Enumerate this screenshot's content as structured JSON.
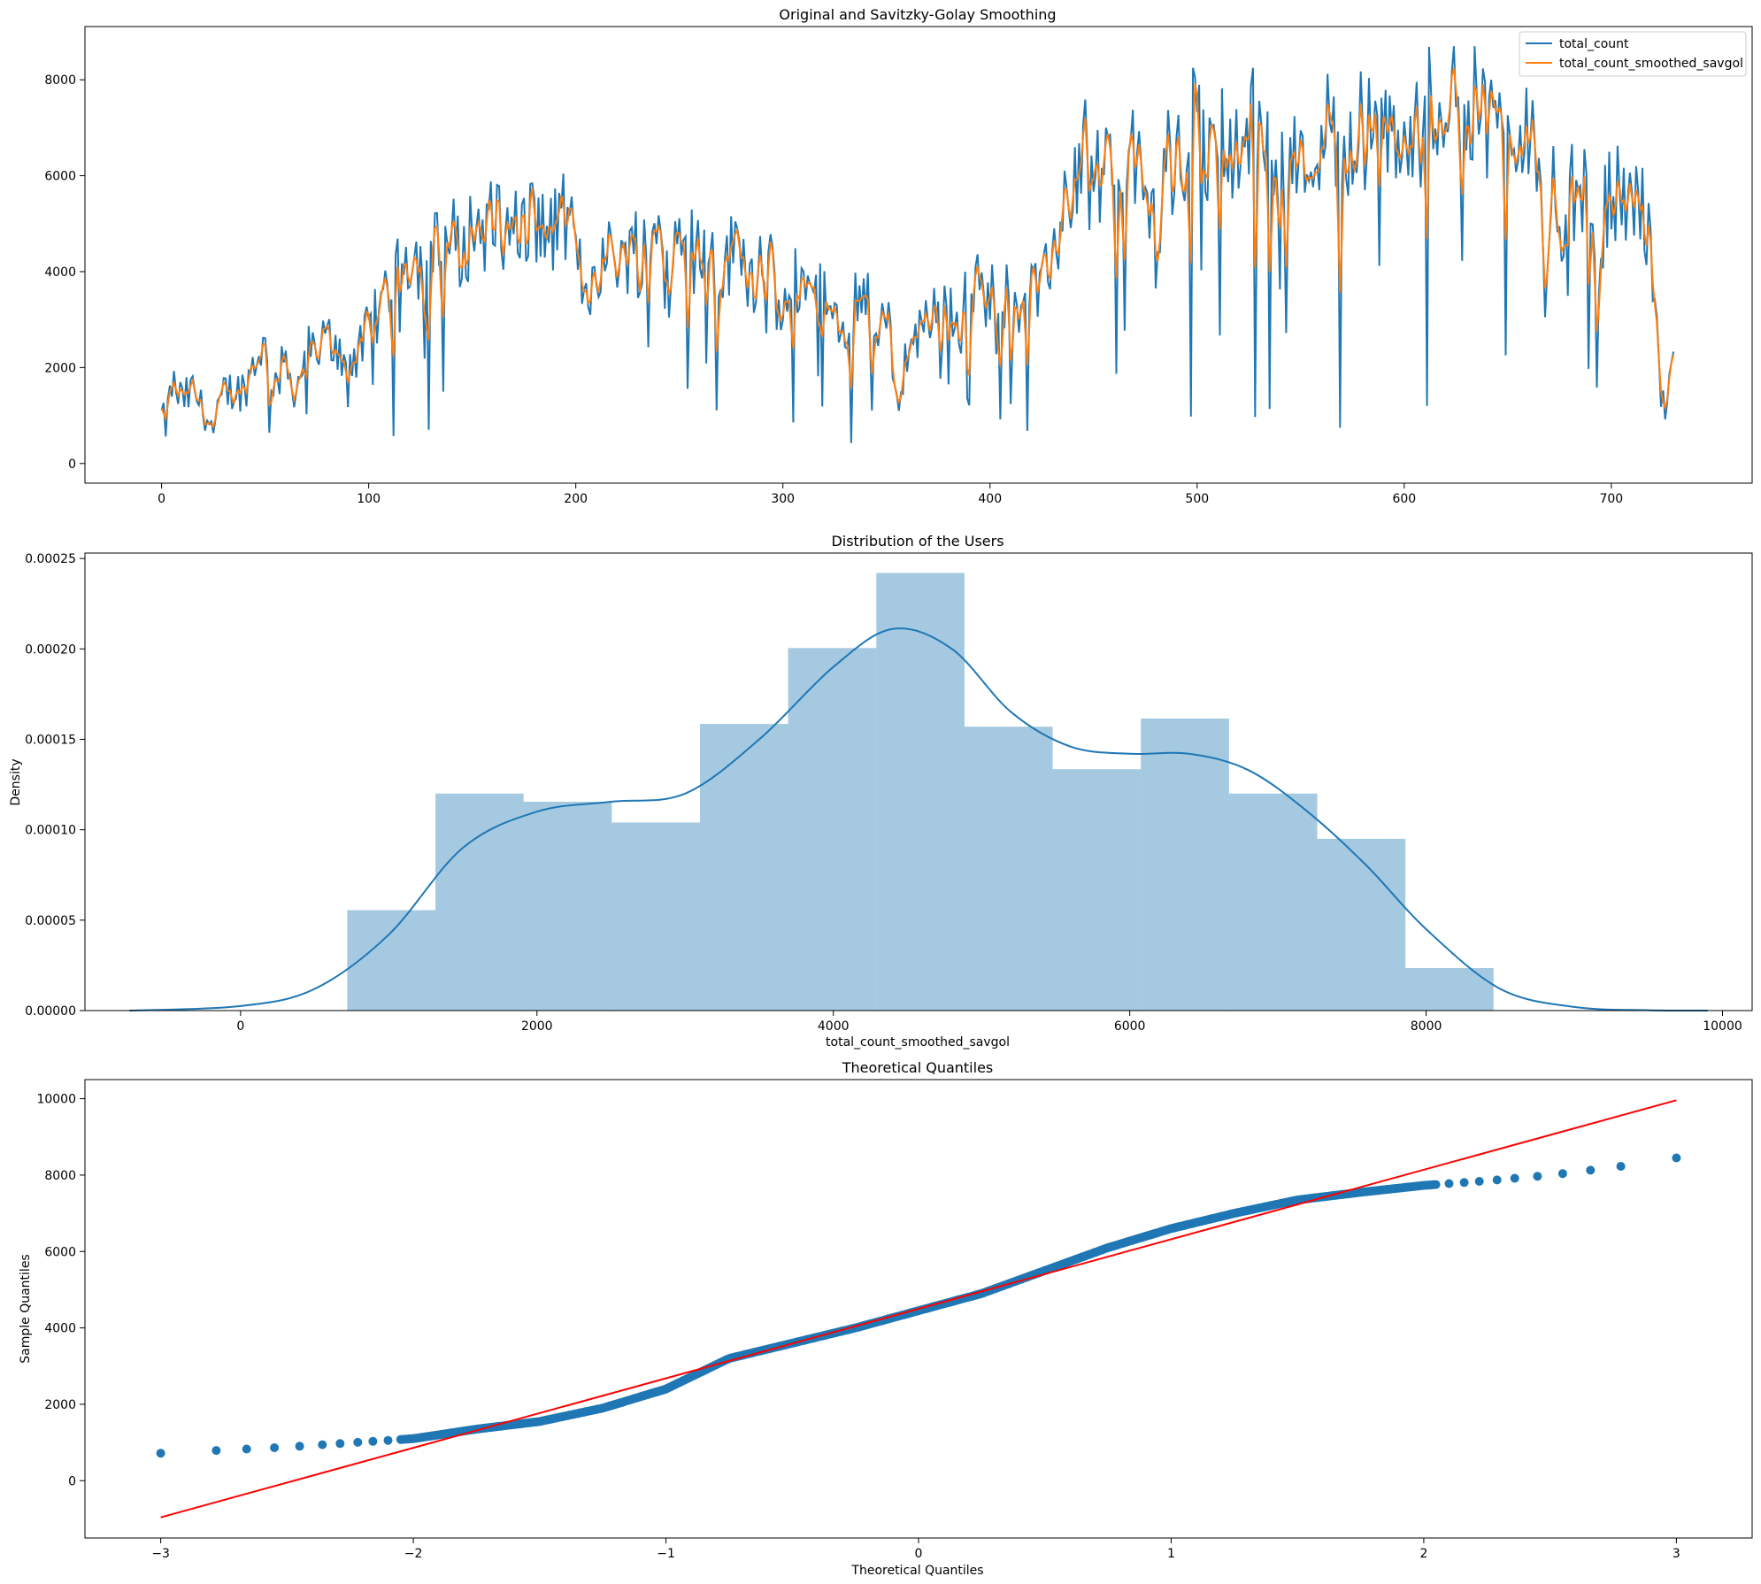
{
  "chart_data": [
    {
      "type": "line",
      "title": "Original and Savitzky-Golay Smoothing",
      "xlabel": "",
      "ylabel": "",
      "xlim": [
        -37,
        768
      ],
      "ylim": [
        -410,
        9110
      ],
      "xticks": [
        0,
        100,
        200,
        300,
        400,
        500,
        600,
        700
      ],
      "yticks": [
        0,
        2000,
        4000,
        6000,
        8000
      ],
      "grid": false,
      "legend": "top-right",
      "colors": [
        "#1f77b4",
        "#ff7f0e"
      ],
      "x_range": [
        0,
        730
      ],
      "series": [
        {
          "name": "total_count",
          "anchors": [
            [
              0,
              985
            ],
            [
              2,
              800
            ],
            [
              5,
              1650
            ],
            [
              10,
              1300
            ],
            [
              15,
              1500
            ],
            [
              20,
              1200
            ],
            [
              25,
              600
            ],
            [
              30,
              1500
            ],
            [
              40,
              1550
            ],
            [
              48,
              2500
            ],
            [
              55,
              1700
            ],
            [
              60,
              2100
            ],
            [
              65,
              1500
            ],
            [
              70,
              2400
            ],
            [
              75,
              2200
            ],
            [
              80,
              2600
            ],
            [
              85,
              2300
            ],
            [
              90,
              2300
            ],
            [
              95,
              2200
            ],
            [
              100,
              2800
            ],
            [
              105,
              3100
            ],
            [
              110,
              3900
            ],
            [
              115,
              4300
            ],
            [
              120,
              4400
            ],
            [
              125,
              4200
            ],
            [
              130,
              4600
            ],
            [
              135,
              4300
            ],
            [
              140,
              4800
            ],
            [
              145,
              4200
            ],
            [
              150,
              5000
            ],
            [
              160,
              4800
            ],
            [
              170,
              4600
            ],
            [
              180,
              5200
            ],
            [
              185,
              4800
            ],
            [
              190,
              4700
            ],
            [
              195,
              5200
            ],
            [
              200,
              4400
            ],
            [
              205,
              3500
            ],
            [
              210,
              4200
            ],
            [
              220,
              4400
            ],
            [
              230,
              4300
            ],
            [
              235,
              4600
            ],
            [
              240,
              5000
            ],
            [
              245,
              3300
            ],
            [
              250,
              4700
            ],
            [
              255,
              4300
            ],
            [
              260,
              4500
            ],
            [
              270,
              3800
            ],
            [
              275,
              4400
            ],
            [
              280,
              4800
            ],
            [
              285,
              3500
            ],
            [
              290,
              4700
            ],
            [
              295,
              3800
            ],
            [
              300,
              2900
            ],
            [
              305,
              3700
            ],
            [
              310,
              4000
            ],
            [
              315,
              3300
            ],
            [
              320,
              3500
            ],
            [
              325,
              2800
            ],
            [
              330,
              2500
            ],
            [
              335,
              3500
            ],
            [
              340,
              3700
            ],
            [
              345,
              2600
            ],
            [
              350,
              3200
            ],
            [
              355,
              1200
            ],
            [
              360,
              2400
            ],
            [
              365,
              2600
            ],
            [
              370,
              3300
            ],
            [
              375,
              2800
            ],
            [
              380,
              3200
            ],
            [
              385,
              2500
            ],
            [
              390,
              4000
            ],
            [
              395,
              3600
            ],
            [
              400,
              3500
            ],
            [
              405,
              3700
            ],
            [
              410,
              3200
            ],
            [
              415,
              3500
            ],
            [
              420,
              3700
            ],
            [
              425,
              3400
            ],
            [
              430,
              4500
            ],
            [
              435,
              5000
            ],
            [
              440,
              6000
            ],
            [
              445,
              6400
            ],
            [
              450,
              5500
            ],
            [
              455,
              6000
            ],
            [
              460,
              6500
            ],
            [
              465,
              5800
            ],
            [
              470,
              6400
            ],
            [
              475,
              5500
            ],
            [
              480,
              4500
            ],
            [
              485,
              6000
            ],
            [
              490,
              6200
            ],
            [
              495,
              6400
            ],
            [
              500,
              7500
            ],
            [
              505,
              6300
            ],
            [
              510,
              6600
            ],
            [
              515,
              7000
            ],
            [
              520,
              6200
            ],
            [
              525,
              7000
            ],
            [
              530,
              7300
            ],
            [
              535,
              6500
            ],
            [
              540,
              6300
            ],
            [
              545,
              6800
            ],
            [
              550,
              6000
            ],
            [
              555,
              6500
            ],
            [
              560,
              6900
            ],
            [
              565,
              6500
            ],
            [
              570,
              7000
            ],
            [
              575,
              6300
            ],
            [
              580,
              6800
            ],
            [
              585,
              7100
            ],
            [
              590,
              6700
            ],
            [
              595,
              6900
            ],
            [
              600,
              6800
            ],
            [
              605,
              6400
            ],
            [
              610,
              7000
            ],
            [
              615,
              7300
            ],
            [
              620,
              7800
            ],
            [
              625,
              8000
            ],
            [
              630,
              7500
            ],
            [
              635,
              7300
            ],
            [
              640,
              7200
            ],
            [
              645,
              6800
            ],
            [
              650,
              7500
            ],
            [
              655,
              6900
            ],
            [
              660,
              7200
            ],
            [
              665,
              6500
            ],
            [
              668,
              2500
            ],
            [
              672,
              5600
            ],
            [
              676,
              5000
            ],
            [
              680,
              5800
            ],
            [
              685,
              5500
            ],
            [
              690,
              5600
            ],
            [
              693,
              3000
            ],
            [
              697,
              5100
            ],
            [
              700,
              5800
            ],
            [
              705,
              5500
            ],
            [
              710,
              5300
            ],
            [
              715,
              5500
            ],
            [
              720,
              4200
            ],
            [
              723,
              1700
            ],
            [
              726,
              900
            ],
            [
              728,
              2000
            ],
            [
              730,
              2600
            ]
          ]
        },
        {
          "name": "total_count_smoothed_savgol"
        }
      ]
    },
    {
      "type": "bar",
      "title": "Distribution of the Users",
      "xlabel": "total_count_smoothed_savgol",
      "ylabel": "Density",
      "xlim": [
        -1050,
        10200
      ],
      "ylim": [
        0,
        0.000253
      ],
      "xticks": [
        0,
        2000,
        4000,
        6000,
        8000,
        10000
      ],
      "yticks": [
        "0.00000",
        "0.00005",
        "0.00010",
        "0.00015",
        "0.00020",
        "0.00025"
      ],
      "legend": "none",
      "colors": [
        "#1f77b4"
      ],
      "bins": [
        {
          "x0": 720,
          "x1": 1315,
          "density": 5.55e-05
        },
        {
          "x0": 1315,
          "x1": 1910,
          "density": 0.00012
        },
        {
          "x0": 1910,
          "x1": 2505,
          "density": 0.0001155
        },
        {
          "x0": 2505,
          "x1": 3100,
          "density": 0.000104
        },
        {
          "x0": 3100,
          "x1": 3695,
          "density": 0.0001585
        },
        {
          "x0": 3695,
          "x1": 4290,
          "density": 0.0002005
        },
        {
          "x0": 4290,
          "x1": 4885,
          "density": 0.000242
        },
        {
          "x0": 4885,
          "x1": 5480,
          "density": 0.000157
        },
        {
          "x0": 5480,
          "x1": 6075,
          "density": 0.0001335
        },
        {
          "x0": 6075,
          "x1": 6670,
          "density": 0.0001615
        },
        {
          "x0": 6670,
          "x1": 7265,
          "density": 0.00012
        },
        {
          "x0": 7265,
          "x1": 7860,
          "density": 9.5e-05
        },
        {
          "x0": 7860,
          "x1": 8455,
          "density": 2.35e-05
        }
      ],
      "kde": {
        "x": [
          -750,
          0,
          500,
          1000,
          1500,
          2000,
          2500,
          3000,
          3500,
          4000,
          4400,
          4800,
          5200,
          5600,
          6000,
          6400,
          6800,
          7200,
          7600,
          8000,
          8500,
          9000,
          9500,
          9900
        ],
        "density": [
          0.0,
          2.5e-06,
          1.2e-05,
          4.2e-05,
          9e-05,
          0.00011,
          0.0001155,
          0.00012,
          0.00015,
          0.00019,
          0.000211,
          0.0002,
          0.000165,
          0.000146,
          0.000142,
          0.000142,
          0.000133,
          0.00011,
          8e-05,
          4.5e-05,
          1.2e-05,
          2e-06,
          2e-07,
          0.0
        ]
      }
    },
    {
      "type": "scatter",
      "title": "Theoretical Quantiles",
      "xlabel": "Theoretical Quantiles",
      "ylabel": "Sample Quantiles",
      "xlim": [
        -3.3,
        3.3
      ],
      "ylim": [
        -1500,
        10500
      ],
      "xticks": [
        -3,
        -2,
        -1,
        0,
        1,
        2,
        3
      ],
      "yticks": [
        0,
        2000,
        4000,
        6000,
        8000,
        10000
      ],
      "legend": "none",
      "colors": [
        "#1f77b4",
        "#ff0000"
      ],
      "quantile_curve": [
        [
          -3.0,
          720
        ],
        [
          -2.5,
          880
        ],
        [
          -2.0,
          1100
        ],
        [
          -1.75,
          1350
        ],
        [
          -1.5,
          1550
        ],
        [
          -1.25,
          1900
        ],
        [
          -1.0,
          2400
        ],
        [
          -0.75,
          3200
        ],
        [
          -0.5,
          3600
        ],
        [
          -0.25,
          4000
        ],
        [
          0.0,
          4450
        ],
        [
          0.25,
          4900
        ],
        [
          0.5,
          5500
        ],
        [
          0.75,
          6100
        ],
        [
          1.0,
          6600
        ],
        [
          1.25,
          7000
        ],
        [
          1.5,
          7350
        ],
        [
          1.75,
          7550
        ],
        [
          2.0,
          7730
        ],
        [
          2.25,
          7850
        ],
        [
          2.5,
          8000
        ],
        [
          2.75,
          8200
        ],
        [
          3.0,
          8450
        ]
      ],
      "reference_line": {
        "x": [
          -3,
          3
        ],
        "y": [
          -960,
          9960
        ]
      }
    }
  ]
}
